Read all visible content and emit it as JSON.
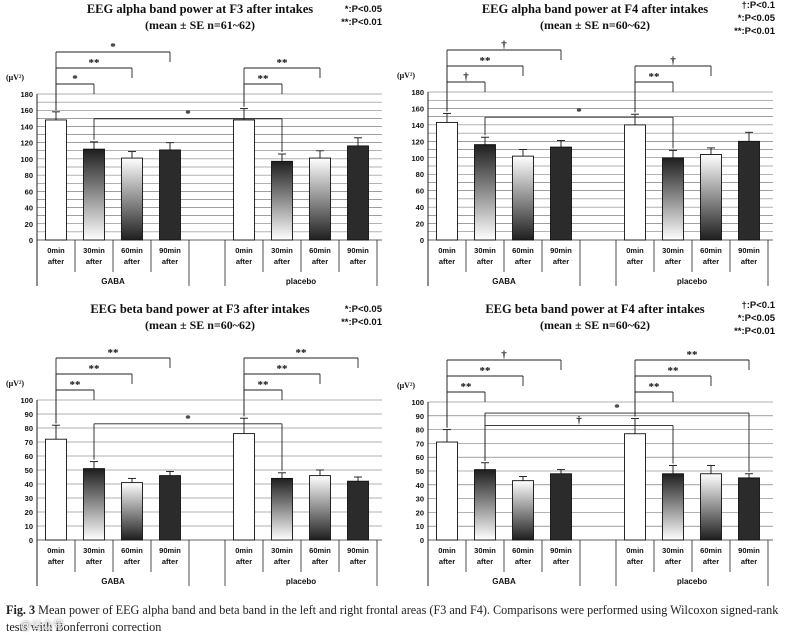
{
  "figure_caption": {
    "label": "Fig. 3",
    "text": "Mean power of EEG alpha band and beta band in the left and right frontal areas (F3 and F4). Comparisons were performed using Wilcoxon signed-rank tests with Bonferroni correction"
  },
  "watermark": "@公众号",
  "colors": {
    "axis": "#222222",
    "bar_white": "#ffffff",
    "bar_dark": "#2b2b2b",
    "bar_mid": "#888888"
  },
  "chart_data": [
    {
      "type": "bar",
      "title": "EEG alpha band power at F3 after intakes",
      "subtitle": "(mean ± SE n=61~62)",
      "ylabel": "(μV²)",
      "ylim": [
        0,
        180
      ],
      "yticks": [
        0,
        10,
        20,
        30,
        40,
        50,
        60,
        70,
        80,
        90,
        100,
        110,
        120,
        130,
        140,
        150,
        160,
        170,
        180
      ],
      "yticklabels": [
        "0",
        "",
        "20",
        "",
        "40",
        "",
        "60",
        "",
        "80",
        "",
        "100",
        "",
        "120",
        "",
        "140",
        "",
        "160",
        "",
        "180"
      ],
      "groups": [
        "GABA",
        "placebo"
      ],
      "categories": [
        "0min after",
        "30min after",
        "60min after",
        "90min after"
      ],
      "series": [
        {
          "name": "GABA",
          "values": [
            148,
            112,
            101,
            111
          ],
          "errors": [
            10,
            9,
            8,
            9
          ]
        },
        {
          "name": "placebo",
          "values": [
            148,
            97,
            101,
            116
          ],
          "errors": [
            14,
            9,
            9,
            10
          ]
        }
      ],
      "legend": [
        "*:P<0.05",
        "**:P<0.01"
      ],
      "annotations": [
        {
          "group": "GABA",
          "from": 0,
          "to": 1,
          "label": "*"
        },
        {
          "group": "GABA",
          "from": 0,
          "to": 2,
          "label": "**"
        },
        {
          "group": "GABA",
          "from": 0,
          "to": 3,
          "label": "*"
        },
        {
          "group": "placebo",
          "from": 0,
          "to": 1,
          "label": "**"
        },
        {
          "group": "placebo",
          "from": 0,
          "to": 2,
          "label": "**"
        },
        {
          "group": "between",
          "from": "GABA 30min",
          "to": "placebo 30min",
          "label": "*"
        }
      ]
    },
    {
      "type": "bar",
      "title": "EEG alpha band power at F4 after intakes",
      "subtitle": "(mean ± SE n=60~62)",
      "ylabel": "(μV²)",
      "ylim": [
        0,
        180
      ],
      "yticks": [
        0,
        10,
        20,
        30,
        40,
        50,
        60,
        70,
        80,
        90,
        100,
        110,
        120,
        130,
        140,
        150,
        160,
        170,
        180
      ],
      "yticklabels": [
        "0",
        "",
        "20",
        "",
        "40",
        "",
        "60",
        "",
        "80",
        "",
        "100",
        "",
        "120",
        "",
        "140",
        "",
        "160",
        "",
        "180"
      ],
      "groups": [
        "GABA",
        "placebo"
      ],
      "categories": [
        "0min after",
        "30min after",
        "60min after",
        "90min after"
      ],
      "series": [
        {
          "name": "GABA",
          "values": [
            143,
            116,
            102,
            113
          ],
          "errors": [
            11,
            9,
            8,
            8
          ]
        },
        {
          "name": "placebo",
          "values": [
            140,
            100,
            104,
            120
          ],
          "errors": [
            13,
            9,
            8,
            11
          ]
        }
      ],
      "legend": [
        "†:P<0.1",
        "*:P<0.05",
        "**:P<0.01"
      ],
      "annotations": [
        {
          "group": "GABA",
          "from": 0,
          "to": 1,
          "label": "†"
        },
        {
          "group": "GABA",
          "from": 0,
          "to": 2,
          "label": "**"
        },
        {
          "group": "GABA",
          "from": 0,
          "to": 3,
          "label": "†"
        },
        {
          "group": "placebo",
          "from": 0,
          "to": 1,
          "label": "**"
        },
        {
          "group": "placebo",
          "from": 0,
          "to": 2,
          "label": "†"
        },
        {
          "group": "between",
          "from": "GABA 30min",
          "to": "placebo 30min",
          "label": "*"
        }
      ]
    },
    {
      "type": "bar",
      "title": "EEG beta band power at F3 after intakes",
      "subtitle": "(mean ± SE n=60~62)",
      "ylabel": "(μV²)",
      "ylim": [
        0,
        100
      ],
      "yticks": [
        0,
        10,
        20,
        30,
        40,
        50,
        60,
        70,
        80,
        90,
        100
      ],
      "yticklabels": [
        "0",
        "10",
        "20",
        "30",
        "40",
        "50",
        "60",
        "70",
        "80",
        "90",
        "100"
      ],
      "groups": [
        "GABA",
        "placebo"
      ],
      "categories": [
        "0min after",
        "30min after",
        "60min after",
        "90min after"
      ],
      "series": [
        {
          "name": "GABA",
          "values": [
            72,
            51,
            41,
            46
          ],
          "errors": [
            10,
            5,
            3,
            3
          ]
        },
        {
          "name": "placebo",
          "values": [
            76,
            44,
            46,
            42
          ],
          "errors": [
            11,
            4,
            4,
            3
          ]
        }
      ],
      "legend": [
        "*:P<0.05",
        "**:P<0.01"
      ],
      "annotations": [
        {
          "group": "GABA",
          "from": 0,
          "to": 1,
          "label": "**"
        },
        {
          "group": "GABA",
          "from": 0,
          "to": 2,
          "label": "**"
        },
        {
          "group": "GABA",
          "from": 0,
          "to": 3,
          "label": "**"
        },
        {
          "group": "placebo",
          "from": 0,
          "to": 1,
          "label": "**"
        },
        {
          "group": "placebo",
          "from": 0,
          "to": 2,
          "label": "**"
        },
        {
          "group": "placebo",
          "from": 0,
          "to": 3,
          "label": "**"
        },
        {
          "group": "between",
          "from": "GABA 30min",
          "to": "placebo 30min",
          "label": "*"
        }
      ]
    },
    {
      "type": "bar",
      "title": "EEG beta band power at F4 after intakes",
      "subtitle": "(mean ± SE n=60~62)",
      "ylabel": "(μV²)",
      "ylim": [
        0,
        100
      ],
      "yticks": [
        0,
        10,
        20,
        30,
        40,
        50,
        60,
        70,
        80,
        90,
        100
      ],
      "yticklabels": [
        "0",
        "10",
        "20",
        "30",
        "40",
        "50",
        "60",
        "70",
        "80",
        "90",
        "100"
      ],
      "groups": [
        "GABA",
        "placebo"
      ],
      "categories": [
        "0min after",
        "30min after",
        "60min after",
        "90min after"
      ],
      "series": [
        {
          "name": "GABA",
          "values": [
            71,
            51,
            43,
            48
          ],
          "errors": [
            9,
            5,
            3,
            3
          ]
        },
        {
          "name": "placebo",
          "values": [
            77,
            48,
            48,
            45
          ],
          "errors": [
            11,
            6,
            6,
            3
          ]
        }
      ],
      "legend": [
        "†:P<0.1",
        "*:P<0.05",
        "**:P<0.01"
      ],
      "annotations": [
        {
          "group": "GABA",
          "from": 0,
          "to": 1,
          "label": "**"
        },
        {
          "group": "GABA",
          "from": 0,
          "to": 2,
          "label": "**"
        },
        {
          "group": "GABA",
          "from": 0,
          "to": 3,
          "label": "†"
        },
        {
          "group": "placebo",
          "from": 0,
          "to": 1,
          "label": "**"
        },
        {
          "group": "placebo",
          "from": 0,
          "to": 2,
          "label": "**"
        },
        {
          "group": "placebo",
          "from": 0,
          "to": 3,
          "label": "**"
        },
        {
          "group": "between_long",
          "from": "GABA 30min",
          "to": "placebo 90min",
          "label": "*"
        },
        {
          "group": "between",
          "from": "GABA 30min",
          "to": "placebo 30min",
          "label": "†"
        }
      ]
    }
  ]
}
